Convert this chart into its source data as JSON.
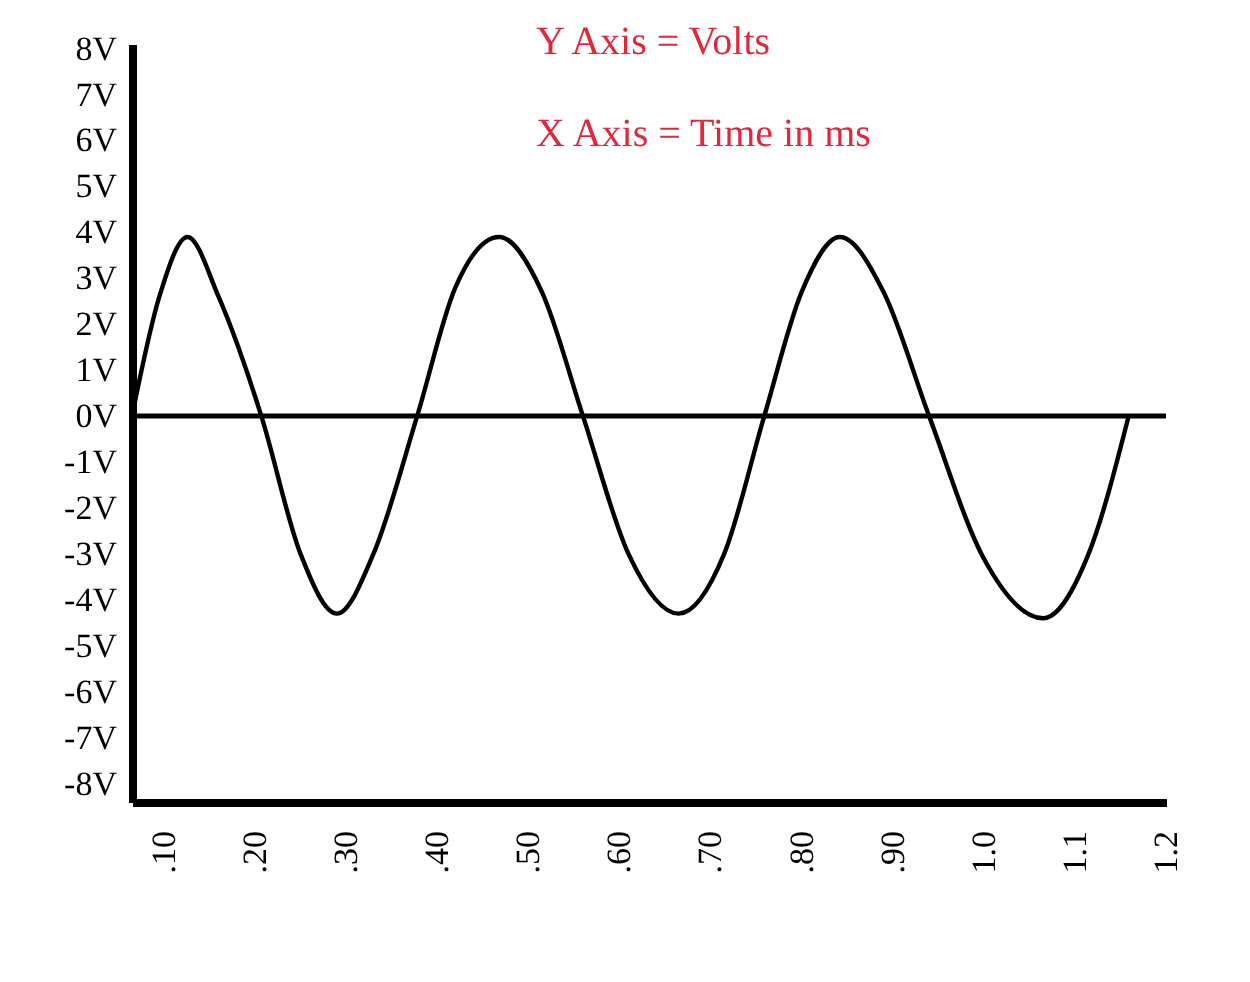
{
  "chart_data": {
    "type": "line",
    "annotations": [
      "Y Axis = Volts",
      "X Axis = Time in ms"
    ],
    "xlim": [
      0.065,
      1.2
    ],
    "xticks": [
      {
        "value": 0.1,
        "label": ".10"
      },
      {
        "value": 0.2,
        "label": ".20"
      },
      {
        "value": 0.3,
        "label": ".30"
      },
      {
        "value": 0.4,
        "label": ".40"
      },
      {
        "value": 0.5,
        "label": ".50"
      },
      {
        "value": 0.6,
        "label": ".60"
      },
      {
        "value": 0.7,
        "label": ".70"
      },
      {
        "value": 0.8,
        "label": ".80"
      },
      {
        "value": 0.9,
        "label": ".90"
      },
      {
        "value": 1.0,
        "label": "1.0"
      },
      {
        "value": 1.1,
        "label": "1.1"
      },
      {
        "value": 1.2,
        "label": "1.2"
      }
    ],
    "ylim": [
      -8.4,
      8.1
    ],
    "yticks": [
      {
        "value": 8,
        "label": "8V"
      },
      {
        "value": 7,
        "label": "7V"
      },
      {
        "value": 6,
        "label": "6V"
      },
      {
        "value": 5,
        "label": "5V"
      },
      {
        "value": 4,
        "label": "4V"
      },
      {
        "value": 3,
        "label": "3V"
      },
      {
        "value": 2,
        "label": "2V"
      },
      {
        "value": 1,
        "label": "1V"
      },
      {
        "value": 0,
        "label": "0V"
      },
      {
        "value": -1,
        "label": "-1V"
      },
      {
        "value": -2,
        "label": "-2V"
      },
      {
        "value": -3,
        "label": "-3V"
      },
      {
        "value": -4,
        "label": "-4V"
      },
      {
        "value": -5,
        "label": "-5V"
      },
      {
        "value": -6,
        "label": "-6V"
      },
      {
        "value": -7,
        "label": "-7V"
      },
      {
        "value": -8,
        "label": "-8V"
      }
    ],
    "series": [
      {
        "color": "#000000",
        "x": [
          0.065,
          0.095,
          0.126,
          0.16,
          0.207,
          0.25,
          0.29,
          0.33,
          0.378,
          0.42,
          0.468,
          0.515,
          0.56,
          0.61,
          0.665,
          0.715,
          0.759,
          0.8,
          0.842,
          0.89,
          0.94,
          1.0,
          1.065,
          1.115,
          1.159
        ],
        "values": [
          0,
          2.6,
          3.9,
          2.6,
          0,
          -3.0,
          -4.3,
          -3.0,
          0,
          2.8,
          3.9,
          2.7,
          0,
          -3.0,
          -4.3,
          -3.0,
          0,
          2.7,
          3.9,
          2.7,
          0,
          -3.1,
          -4.4,
          -3.0,
          0
        ]
      }
    ],
    "ref_lines": [
      {
        "axis": "y",
        "value": 0,
        "color": "#000000"
      }
    ],
    "grid": false,
    "marker": "none",
    "line_style": "solid"
  }
}
